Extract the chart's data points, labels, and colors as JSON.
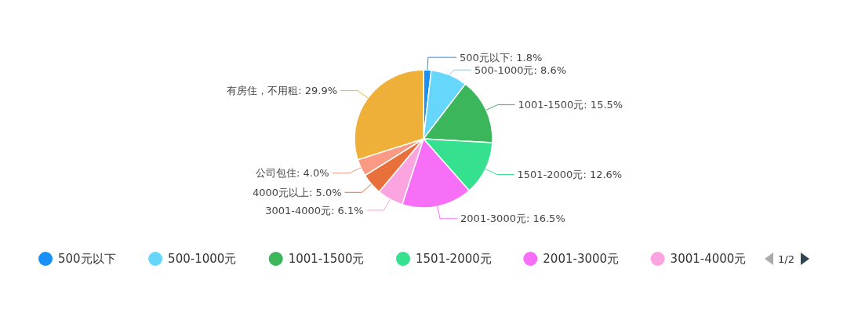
{
  "chart_data": {
    "type": "pie",
    "categories": [
      "500元以下",
      "500-1000元",
      "1001-1500元",
      "1501-2000元",
      "2001-3000元",
      "3001-4000元",
      "4000元以上",
      "公司包住",
      "有房住，不用租"
    ],
    "values": [
      1.8,
      8.6,
      15.5,
      12.6,
      16.5,
      6.1,
      5.0,
      4.0,
      29.9
    ],
    "value_labels": [
      ": 1.8%",
      ": 8.6%",
      ": 15.5%",
      ": 12.6%",
      ": 16.5%",
      ": 6.1%",
      ": 5.0%",
      ": 4.0%",
      ": 29.9%"
    ],
    "annotations": [
      "1/2"
    ],
    "colors": [
      "#1890f5",
      "#66d7fb",
      "#3cb65a",
      "#35e08f",
      "#f76ef7",
      "#fba4e0",
      "#e8703a",
      "#fb9a84",
      "#efb03a"
    ],
    "legend": "bottom"
  }
}
